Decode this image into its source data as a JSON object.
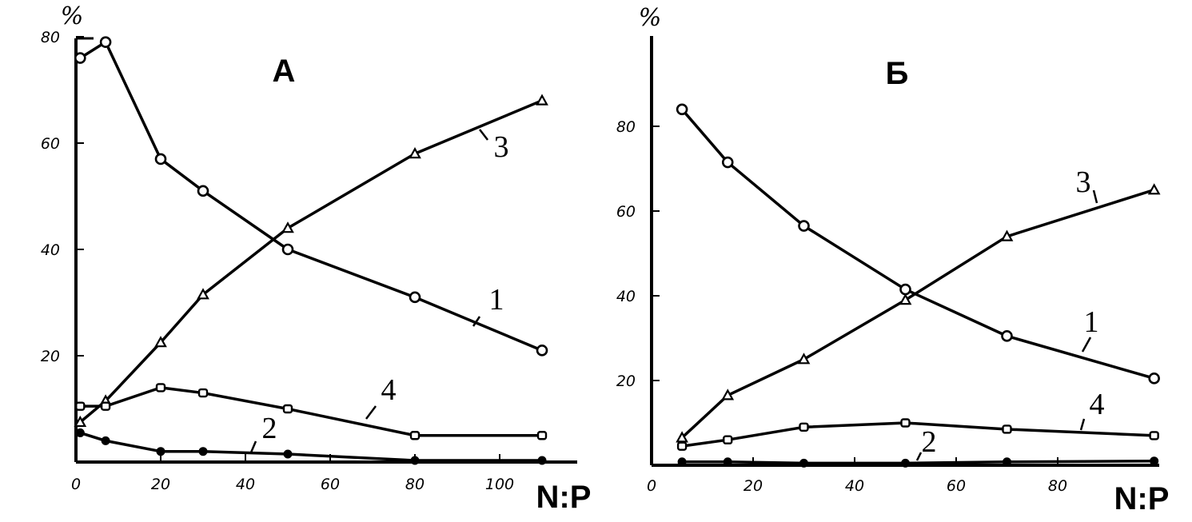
{
  "chart_data": [
    {
      "type": "line",
      "title": "А",
      "ylabel": "%",
      "xlabel": "N:P",
      "xlim": [
        0,
        118
      ],
      "ylim": [
        0,
        80
      ],
      "xticks": [
        0,
        20,
        40,
        60,
        80,
        100
      ],
      "yticks": [
        20,
        40,
        60,
        80
      ],
      "grid": false,
      "series": [
        {
          "name": "1",
          "marker": "circle",
          "x": [
            1,
            7,
            20,
            30,
            50,
            80,
            110
          ],
          "y": [
            76,
            79,
            57,
            51,
            40,
            31,
            21
          ]
        },
        {
          "name": "2",
          "marker": "dot",
          "x": [
            1,
            7,
            20,
            30,
            50,
            80,
            110
          ],
          "y": [
            5.5,
            4,
            2,
            2,
            1.5,
            0.3,
            0.3
          ]
        },
        {
          "name": "3",
          "marker": "triangle",
          "x": [
            1,
            7,
            20,
            30,
            50,
            80,
            110
          ],
          "y": [
            7.5,
            11.5,
            22.5,
            31.5,
            44,
            58,
            68
          ]
        },
        {
          "name": "4",
          "marker": "square",
          "x": [
            1,
            7,
            20,
            30,
            50,
            80,
            110
          ],
          "y": [
            10.5,
            10.5,
            14,
            13,
            10,
            5,
            5
          ]
        }
      ]
    },
    {
      "type": "line",
      "title": "Б",
      "ylabel": "%",
      "xlabel": "N:P",
      "xlim": [
        0,
        100
      ],
      "ylim": [
        0,
        100
      ],
      "xticks": [
        0,
        20,
        40,
        60,
        80
      ],
      "yticks": [
        20,
        40,
        60,
        80
      ],
      "grid": false,
      "series": [
        {
          "name": "1",
          "marker": "circle",
          "x": [
            6,
            15,
            30,
            50,
            70,
            99
          ],
          "y": [
            84,
            71.5,
            56.5,
            41.5,
            30.5,
            20.5
          ]
        },
        {
          "name": "2",
          "marker": "dot",
          "x": [
            6,
            15,
            30,
            50,
            70,
            99
          ],
          "y": [
            0.8,
            0.8,
            0.5,
            0.5,
            0.8,
            1
          ]
        },
        {
          "name": "3",
          "marker": "triangle",
          "x": [
            6,
            15,
            30,
            50,
            70,
            99
          ],
          "y": [
            6.5,
            16.5,
            25,
            39,
            54,
            65
          ]
        },
        {
          "name": "4",
          "marker": "square",
          "x": [
            6,
            15,
            30,
            50,
            70,
            99
          ],
          "y": [
            4.5,
            6,
            9,
            10,
            8.5,
            7
          ]
        }
      ]
    }
  ]
}
